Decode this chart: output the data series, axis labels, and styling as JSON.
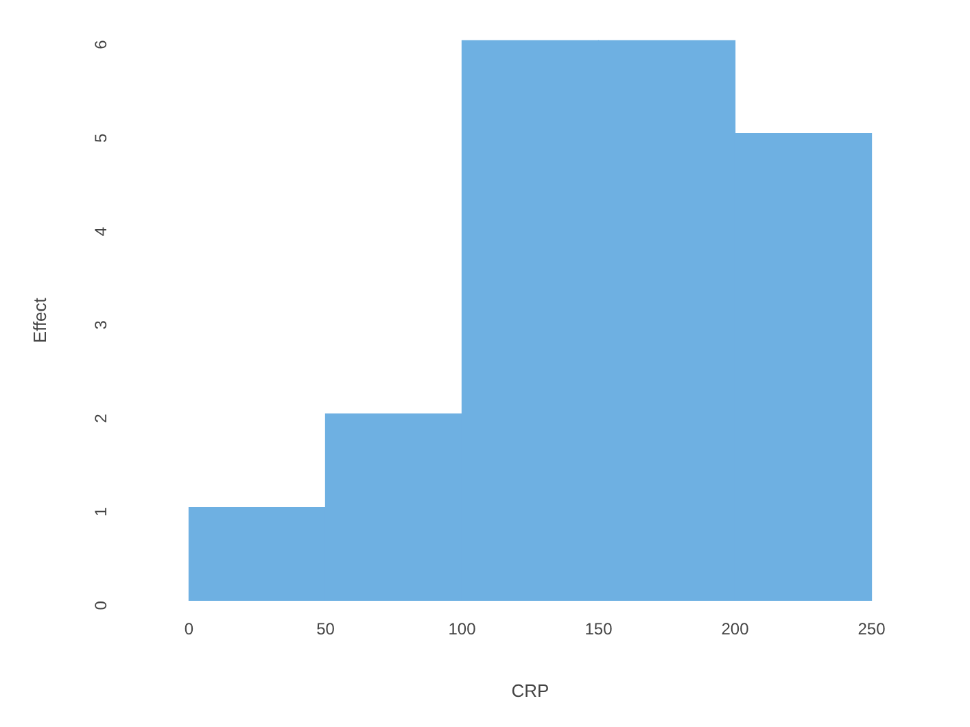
{
  "chart_data": {
    "type": "histogram",
    "xlabel": "CRP",
    "ylabel": "Effect",
    "bins": [
      0,
      50,
      100,
      150,
      200,
      250
    ],
    "values": [
      1,
      2,
      6,
      6,
      5
    ],
    "color": "#6eb0e2",
    "xlim": [
      0,
      250
    ],
    "xticks": [
      0,
      50,
      100,
      150,
      200,
      250
    ],
    "ylim": [
      0,
      6
    ],
    "yticks": [
      0,
      1,
      2,
      3,
      4,
      5,
      6
    ],
    "grid": false
  }
}
